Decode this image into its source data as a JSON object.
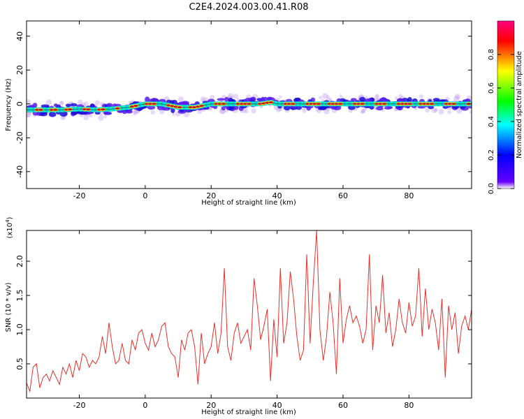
{
  "title": "C2E4.2024.003.00.41.R08",
  "chart_data": [
    {
      "type": "heatmap",
      "xlabel": "Height of straight line (km)",
      "ylabel": "Frequency (Hz)",
      "xlim": [
        -36,
        99
      ],
      "ylim": [
        -50,
        49
      ],
      "xticks": [
        -20,
        0,
        20,
        40,
        60,
        80
      ],
      "yticks": [
        -40,
        -20,
        0,
        20,
        40
      ],
      "xtick_labels": [
        "-20",
        "0",
        "20",
        "40",
        "60",
        "80"
      ],
      "ytick_labels": [
        "-40",
        "-20",
        "0",
        "20",
        "40"
      ],
      "grid": false,
      "ridge": {
        "description_values_only": true,
        "x": [
          -36,
          -30,
          -25,
          -20,
          -15,
          -10,
          -5,
          0,
          5,
          10,
          15,
          20,
          25,
          30,
          35,
          38,
          40,
          45,
          50,
          55,
          60,
          65,
          70,
          75,
          80,
          85,
          90,
          95,
          99
        ],
        "y": [
          -3.5,
          -3.5,
          -3.5,
          -3,
          -3.5,
          -3,
          -2,
          0,
          0,
          -2,
          -2,
          0,
          0,
          0,
          0,
          1,
          0,
          0,
          0,
          0,
          0,
          0,
          0,
          0,
          0,
          0,
          0,
          0,
          0
        ]
      },
      "colorbar": {
        "label": "Normalized spectral amplitude",
        "range": [
          0,
          1
        ],
        "ticks": [
          0.0,
          0.2,
          0.4,
          0.6,
          0.8
        ],
        "tick_labels": [
          "0.0",
          "0.2",
          "0.4",
          "0.6",
          "0.8"
        ],
        "colors": [
          "#ffffff",
          "#6600ff",
          "#0000ff",
          "#00ffff",
          "#00ff00",
          "#ffff00",
          "#ff0000",
          "#ff0080"
        ]
      }
    },
    {
      "type": "line",
      "xlabel": "Height of straight line (km)",
      "ylabel": "SNR (10 * v/v)",
      "y_multiplier": "(x10",
      "y_multiplier_exp": "4",
      "y_multiplier_close": ")",
      "xlim": [
        -36,
        99
      ],
      "ylim": [
        0,
        2.45
      ],
      "xticks": [
        -20,
        0,
        20,
        40,
        60,
        80
      ],
      "yticks": [
        0.5,
        1.0,
        1.5,
        2.0
      ],
      "xtick_labels": [
        "-20",
        "0",
        "20",
        "40",
        "60",
        "80"
      ],
      "ytick_labels": [
        "0.5",
        "1.0",
        "1.5",
        "2.0"
      ],
      "grid": false,
      "series": [
        {
          "color": "#e8302c",
          "x_start": -36,
          "x_step": 1,
          "values": [
            0.22,
            0.1,
            0.45,
            0.5,
            0.15,
            0.3,
            0.35,
            0.25,
            0.4,
            0.3,
            0.2,
            0.45,
            0.35,
            0.5,
            0.3,
            0.55,
            0.4,
            0.65,
            0.6,
            0.45,
            0.55,
            0.5,
            0.6,
            0.9,
            0.65,
            1.1,
            0.75,
            0.5,
            0.55,
            0.8,
            0.55,
            0.5,
            0.85,
            0.7,
            0.95,
            1.0,
            0.8,
            0.7,
            0.95,
            0.75,
            0.85,
            1.05,
            1.1,
            0.75,
            0.65,
            0.6,
            0.3,
            0.85,
            0.7,
            0.95,
            1.0,
            0.75,
            0.2,
            0.95,
            0.5,
            0.65,
            0.75,
            1.1,
            0.65,
            0.95,
            1.9,
            0.75,
            0.55,
            0.95,
            1.1,
            0.8,
            0.9,
            1.0,
            0.7,
            1.75,
            1.35,
            0.85,
            1.05,
            1.3,
            0.25,
            1.15,
            0.6,
            1.9,
            0.8,
            1.1,
            1.85,
            1.45,
            0.9,
            0.55,
            0.7,
            2.1,
            0.8,
            1.7,
            2.45,
            1.0,
            0.55,
            0.9,
            1.55,
            1.1,
            0.35,
            1.75,
            0.8,
            1.15,
            1.35,
            1.1,
            1.2,
            1.05,
            0.8,
            1.0,
            2.1,
            0.7,
            1.35,
            1.1,
            1.8,
            0.95,
            1.25,
            0.75,
            1.0,
            1.45,
            1.1,
            0.95,
            1.4,
            1.05,
            1.2,
            1.9,
            0.9,
            1.6,
            1.0,
            1.3,
            1.1,
            0.7,
            1.45,
            0.3,
            1.35,
            1.0,
            1.25,
            0.65,
            1.05,
            1.2,
            1.0,
            1.3
          ]
        }
      ]
    }
  ]
}
